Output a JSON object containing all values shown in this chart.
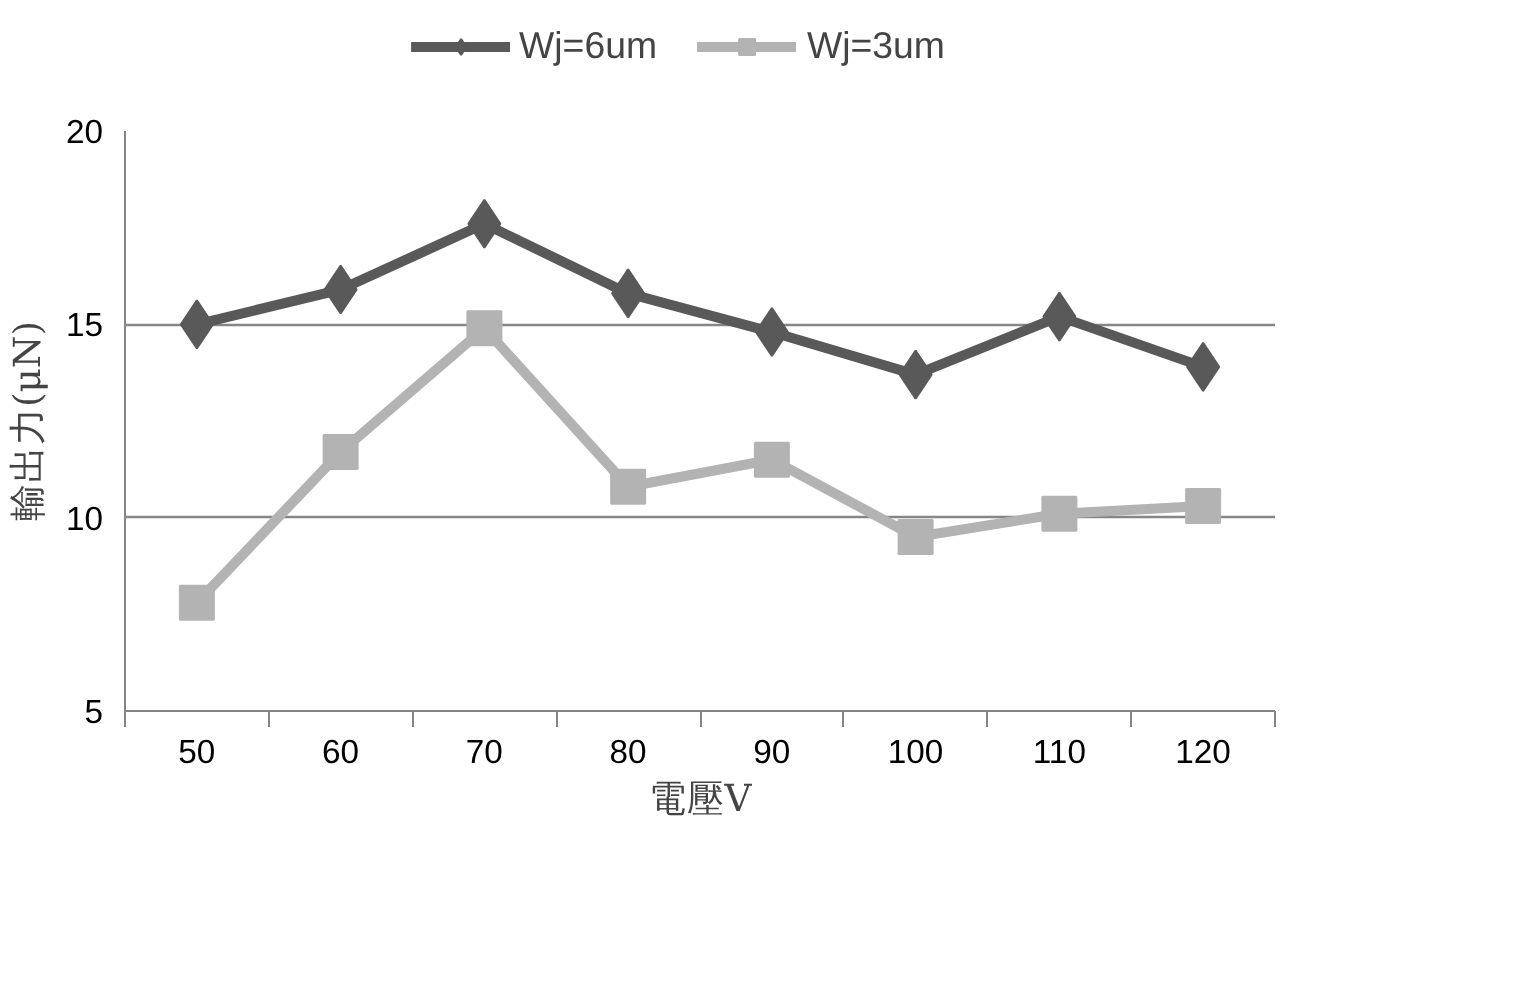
{
  "chart_data": {
    "type": "line",
    "xlabel": "電壓V",
    "ylabel": "輸出力(μN)",
    "categories": [
      "50",
      "60",
      "70",
      "80",
      "90",
      "100",
      "110",
      "120"
    ],
    "series": [
      {
        "name": "Wj=6um",
        "color": "#595959",
        "marker": "diamond",
        "values": [
          15.0,
          15.9,
          17.6,
          15.8,
          14.8,
          13.7,
          15.2,
          13.9
        ]
      },
      {
        "name": "Wj=3um",
        "color": "#b3b3b3",
        "marker": "square",
        "values": [
          7.8,
          11.7,
          14.9,
          10.8,
          11.5,
          9.5,
          10.1,
          10.3
        ]
      }
    ],
    "ylim": [
      5,
      20
    ],
    "yticks": [
      5,
      10,
      15,
      20
    ],
    "grid": "y",
    "legend": "top"
  }
}
